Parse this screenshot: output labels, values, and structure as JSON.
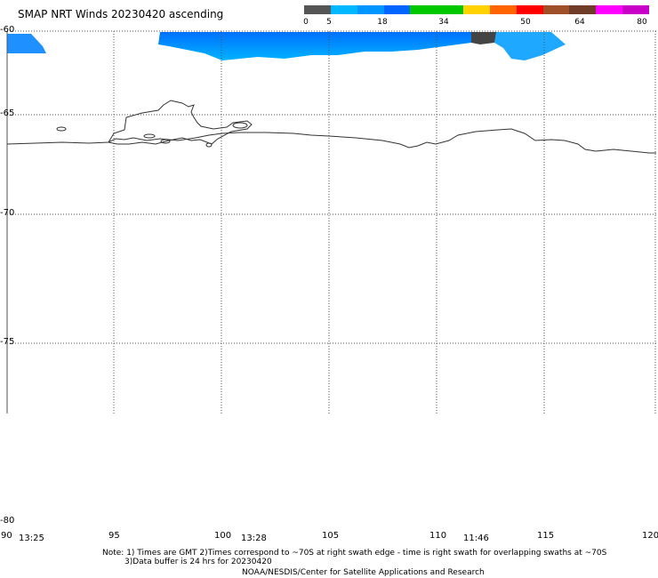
{
  "title": "SMAP NRT Winds 20230420 ascending",
  "legend": {
    "colors": [
      "#555555",
      "#00b8ff",
      "#0096ff",
      "#0064ff",
      "#00c800",
      "#00c800",
      "#ffd200",
      "#ff6400",
      "#ff0000",
      "#a05028",
      "#6e3c28",
      "#ff00ff",
      "#c800c8"
    ],
    "labels": [
      "0",
      "5",
      "18",
      "34",
      "50",
      "64",
      "80"
    ]
  },
  "axes": {
    "lat_labels": [
      "-60",
      "-65",
      "-70",
      "-75",
      "-80"
    ],
    "lon_labels": [
      "90",
      "95",
      "100",
      "105",
      "110",
      "115",
      "120"
    ]
  },
  "times": [
    "13:25",
    "13:28",
    "11:46"
  ],
  "note_line1": "Note: 1) Times are GMT 2)Times correspond to ~70S at right swath edge - time is right swath for overlapping swaths at ~70S",
  "note_line2": "3)Data buffer is 24 hrs for 20230420",
  "credit": "NOAA/NESDIS/Center for Satellite Applications and Research"
}
